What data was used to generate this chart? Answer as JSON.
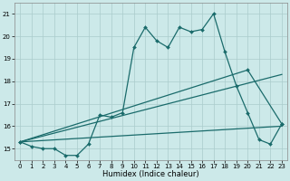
{
  "xlabel": "Humidex (Indice chaleur)",
  "background_color": "#cce9e9",
  "grid_color": "#aacccc",
  "line_color": "#1a6b6b",
  "xlim": [
    -0.5,
    23.5
  ],
  "ylim": [
    14.5,
    21.5
  ],
  "yticks": [
    15,
    16,
    17,
    18,
    19,
    20,
    21
  ],
  "xticks": [
    0,
    1,
    2,
    3,
    4,
    5,
    6,
    7,
    8,
    9,
    10,
    11,
    12,
    13,
    14,
    15,
    16,
    17,
    18,
    19,
    20,
    21,
    22,
    23
  ],
  "series1_x": [
    0,
    1,
    2,
    3,
    4,
    5,
    6,
    7,
    8,
    9,
    10,
    11,
    12,
    13,
    14,
    15,
    16,
    17,
    18,
    19,
    20,
    21,
    22,
    23
  ],
  "series1_y": [
    15.3,
    15.1,
    15.0,
    15.0,
    14.7,
    14.7,
    15.2,
    16.5,
    16.4,
    16.6,
    19.5,
    20.4,
    19.8,
    19.5,
    20.4,
    20.2,
    20.3,
    21.0,
    19.3,
    17.8,
    16.6,
    15.4,
    15.2,
    16.1
  ],
  "series2_x": [
    0,
    20,
    23
  ],
  "series2_y": [
    15.3,
    18.5,
    16.1
  ],
  "series3_x": [
    0,
    23
  ],
  "series3_y": [
    15.3,
    18.3
  ],
  "series4_x": [
    0,
    23
  ],
  "series4_y": [
    15.3,
    16.0
  ]
}
